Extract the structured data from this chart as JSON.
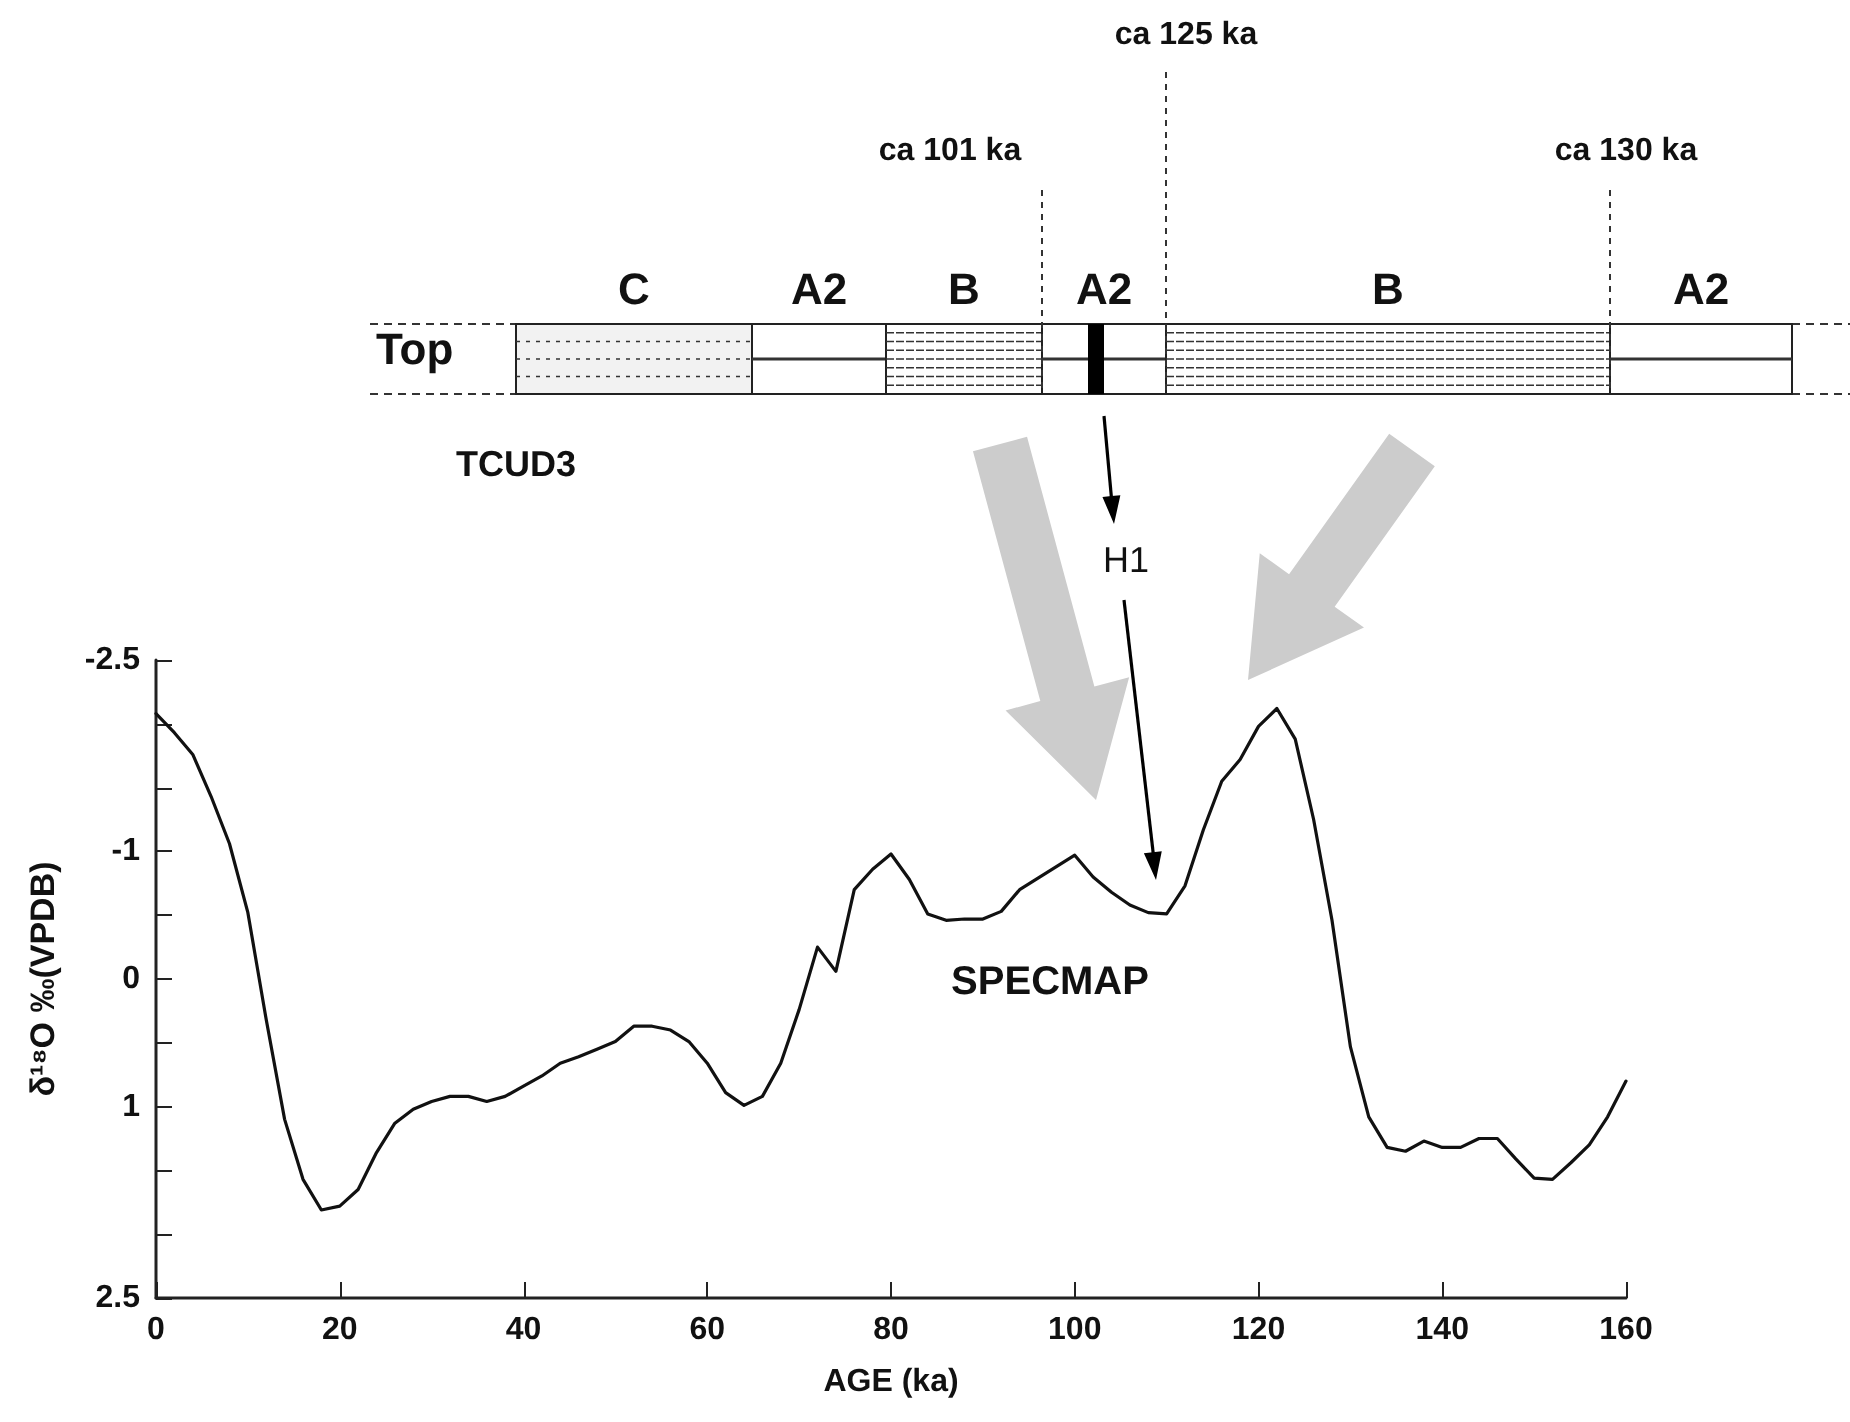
{
  "chart_data": {
    "type": "line",
    "xlabel": "AGE (ka)",
    "ylabel": "δ¹⁸O ‰(VPDB)",
    "x": [
      0,
      2,
      4,
      6,
      8,
      10,
      12,
      14,
      16,
      18,
      20,
      22,
      24,
      26,
      28,
      30,
      32,
      34,
      36,
      38,
      40,
      42,
      44,
      46,
      48,
      50,
      52,
      54,
      56,
      58,
      60,
      62,
      64,
      66,
      68,
      70,
      72,
      74,
      76,
      78,
      80,
      82,
      84,
      86,
      88,
      90,
      92,
      94,
      96,
      98,
      100,
      102,
      104,
      106,
      108,
      110,
      112,
      114,
      116,
      118,
      120,
      122,
      124,
      126,
      128,
      130,
      132,
      134,
      136,
      138,
      140,
      142,
      144,
      146,
      148,
      150,
      152,
      154,
      156,
      158,
      160
    ],
    "series": [
      {
        "color": "#111111",
        "values": [
          -2.08,
          -1.93,
          -1.76,
          -1.43,
          -1.06,
          -0.52,
          0.32,
          1.1,
          1.57,
          1.81,
          1.78,
          1.65,
          1.36,
          1.13,
          1.02,
          0.96,
          0.92,
          0.92,
          0.96,
          0.92,
          0.84,
          0.76,
          0.66,
          0.61,
          0.55,
          0.49,
          0.37,
          0.37,
          0.4,
          0.49,
          0.66,
          0.89,
          0.99,
          0.92,
          0.66,
          0.24,
          -0.25,
          -0.06,
          -0.7,
          -0.86,
          -0.98,
          -0.78,
          -0.51,
          -0.46,
          -0.47,
          -0.47,
          -0.53,
          -0.7,
          -0.79,
          -0.88,
          -0.97,
          -0.8,
          -0.68,
          -0.58,
          -0.52,
          -0.51,
          -0.73,
          -1.17,
          -1.55,
          -1.72,
          -1.98,
          -2.12,
          -1.88,
          -1.25,
          -0.46,
          0.53,
          1.08,
          1.32,
          1.35,
          1.27,
          1.32,
          1.32,
          1.25,
          1.25,
          1.41,
          1.56,
          1.57,
          1.44,
          1.3,
          1.08,
          0.8
        ]
      }
    ],
    "xlim": [
      0,
      160
    ],
    "xticks": [
      0,
      20,
      40,
      60,
      80,
      100,
      120,
      140,
      160
    ],
    "ylim": [
      2.5,
      -2.5
    ],
    "yticks": [
      -2.5,
      {
        "value": -2,
        "label": null
      },
      {
        "value": -1.5,
        "label": null
      },
      -1,
      {
        "value": -0.5,
        "label": null
      },
      0,
      {
        "value": 0.5,
        "label": null
      },
      1,
      {
        "value": 1.5,
        "label": null
      },
      {
        "value": 2,
        "label": null
      },
      2.5
    ],
    "marker": "none",
    "line_style": "solid",
    "annotations": [
      "ca 125 ka",
      "ca 101 ka",
      "ca 130 ka",
      "Top",
      "TCUD3",
      "H1",
      "SPECMAP",
      "C",
      "A2",
      "B",
      "A2",
      "B",
      "A2"
    ]
  }
}
